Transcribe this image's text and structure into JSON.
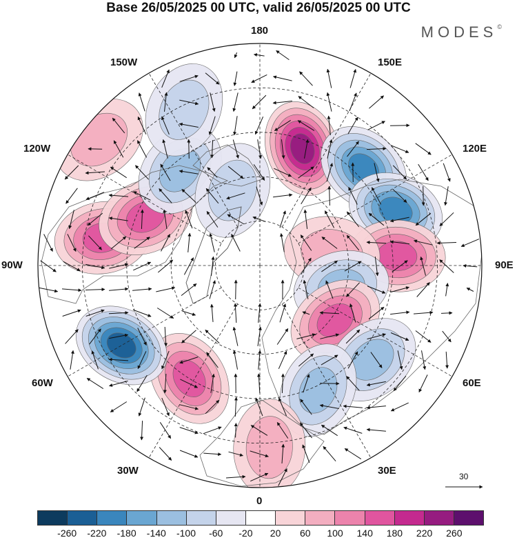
{
  "title": "Base 26/05/2025 00 UTC, valid 26/05/2025 00 UTC",
  "brand": "MODES",
  "brand_mark": "©",
  "longitude_labels": {
    "top": "180",
    "top_left": "150W",
    "top_right": "150E",
    "upper_left": "120W",
    "upper_right": "120E",
    "left": "90W",
    "right": "90E",
    "lower_left": "60W",
    "lower_right": "60E",
    "bottom_left": "30W",
    "bottom_right": "30E",
    "bottom": "0"
  },
  "reference_vector_label": "30",
  "colorbar": {
    "colors": [
      "#0d3b5e",
      "#1b5f95",
      "#3a86bd",
      "#6aa6d2",
      "#9bbfe0",
      "#c4d3ea",
      "#e6e6f2",
      "#ffffff",
      "#f8d4d8",
      "#f3aec0",
      "#ec83ac",
      "#e0559f",
      "#c42a8f",
      "#961c80",
      "#5d0f6d"
    ],
    "tick_labels": [
      "-260",
      "-220",
      "-180",
      "-140",
      "-100",
      "-60",
      "-20",
      "20",
      "60",
      "100",
      "140",
      "180",
      "220",
      "260"
    ]
  },
  "anomaly_centers": [
    {
      "lon": 160,
      "lat_radius": 0.56,
      "value": 240
    },
    {
      "lon": 133,
      "lat_radius": 0.64,
      "value": -200
    },
    {
      "lon": 112,
      "lat_radius": 0.66,
      "value": -180
    },
    {
      "lon": 94,
      "lat_radius": 0.62,
      "value": 140
    },
    {
      "lon": 100,
      "lat_radius": 0.33,
      "value": 80
    },
    {
      "lon": 75,
      "lat_radius": 0.38,
      "value": -120
    },
    {
      "lon": 54,
      "lat_radius": 0.42,
      "value": 150
    },
    {
      "lon": 50,
      "lat_radius": 0.66,
      "value": -130
    },
    {
      "lon": 25,
      "lat_radius": 0.62,
      "value": -110
    },
    {
      "lon": -32,
      "lat_radius": 0.6,
      "value": 140
    },
    {
      "lon": -60,
      "lat_radius": 0.72,
      "value": -220
    },
    {
      "lon": -100,
      "lat_radius": 0.72,
      "value": 170
    },
    {
      "lon": -113,
      "lat_radius": 0.56,
      "value": 160
    },
    {
      "lon": -140,
      "lat_radius": 0.56,
      "value": -100
    },
    {
      "lon": -154,
      "lat_radius": 0.78,
      "value": -80
    },
    {
      "lon": -128,
      "lat_radius": 0.92,
      "value": 60
    },
    {
      "lon": -160,
      "lat_radius": 0.36,
      "value": -70
    },
    {
      "lon": 3,
      "lat_radius": 0.82,
      "value": 70
    }
  ]
}
